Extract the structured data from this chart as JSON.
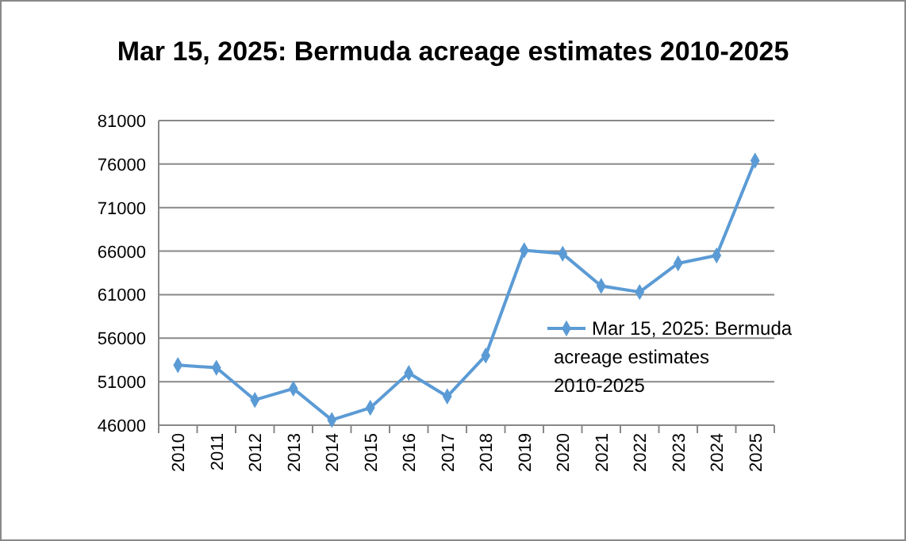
{
  "chart_data": {
    "type": "line",
    "title": "Mar 15, 2025: Bermuda acreage estimates 2010-2025",
    "categories": [
      "2010",
      "2011",
      "2012",
      "2013",
      "2014",
      "2015",
      "2016",
      "2017",
      "2018",
      "2019",
      "2020",
      "2021",
      "2022",
      "2023",
      "2024",
      "2025"
    ],
    "series": [
      {
        "name": "Mar 15, 2025: Bermuda acreage estimates 2010-2025",
        "color": "#5b9bd5",
        "values": [
          52900,
          52600,
          48900,
          50200,
          46600,
          48000,
          52000,
          49300,
          54000,
          66100,
          65700,
          62000,
          61300,
          64600,
          65500,
          76400
        ]
      }
    ],
    "ylim": [
      46000,
      81000
    ],
    "yticks": [
      46000,
      51000,
      56000,
      61000,
      66000,
      71000,
      76000,
      81000
    ],
    "grid": "y",
    "legend": "right",
    "marker": "diamond",
    "line_style": "solid"
  }
}
